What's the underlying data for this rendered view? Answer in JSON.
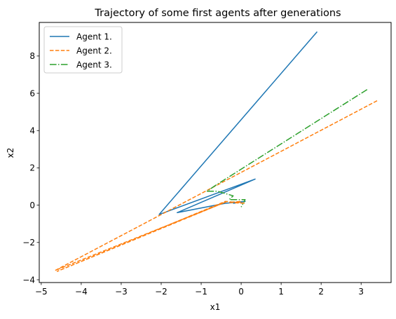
{
  "chart_data": {
    "type": "line",
    "title": "Trajectory of some first agents after generations",
    "xlabel": "x1",
    "ylabel": "x2",
    "xlim": [
      -5.05,
      3.75
    ],
    "ylim": [
      -4.15,
      9.8
    ],
    "xticks": [
      -5,
      -4,
      -3,
      -2,
      -1,
      0,
      1,
      2,
      3
    ],
    "yticks": [
      -4,
      -2,
      0,
      2,
      4,
      6,
      8
    ],
    "xtick_labels": [
      "−5",
      "−4",
      "−3",
      "−2",
      "−1",
      "0",
      "1",
      "2",
      "3"
    ],
    "ytick_labels": [
      "−4",
      "−2",
      "0",
      "2",
      "4",
      "6",
      "8"
    ],
    "grid": false,
    "legend_position": "top-left",
    "series": [
      {
        "name": "Agent 1.",
        "color": "#1f77b4",
        "style": "solid",
        "points": [
          [
            1.9,
            9.3
          ],
          [
            -2.05,
            -0.5
          ],
          [
            0.35,
            1.4
          ],
          [
            -1.6,
            -0.4
          ],
          [
            -0.4,
            0.1
          ],
          [
            0.1,
            0.2
          ],
          [
            -0.2,
            0.1
          ]
        ]
      },
      {
        "name": "Agent 2.",
        "color": "#ff7f0e",
        "style": "dashed",
        "points": [
          [
            3.4,
            5.6
          ],
          [
            -4.65,
            -3.5
          ],
          [
            -0.35,
            0.2
          ],
          [
            -4.6,
            -3.55
          ],
          [
            -0.4,
            0.2
          ],
          [
            0.1,
            0.1
          ],
          [
            -0.3,
            0.15
          ],
          [
            0.0,
            0.2
          ],
          [
            -0.1,
            0.1
          ]
        ]
      },
      {
        "name": "Agent 3.",
        "color": "#2ca02c",
        "style": "dashdot",
        "points": [
          [
            3.15,
            6.2
          ],
          [
            -0.65,
            1.05
          ],
          [
            -0.85,
            0.75
          ],
          [
            -0.6,
            0.75
          ],
          [
            -0.2,
            0.5
          ],
          [
            -0.3,
            0.3
          ],
          [
            0.1,
            0.3
          ],
          [
            0.0,
            -0.1
          ]
        ]
      }
    ]
  }
}
